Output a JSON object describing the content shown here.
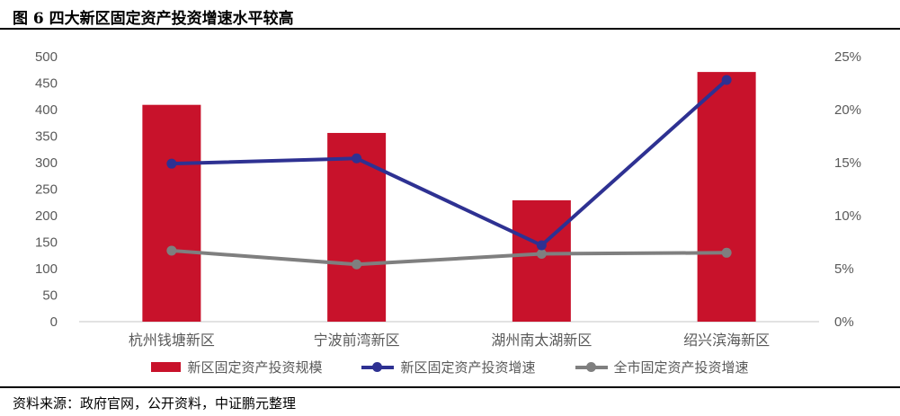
{
  "title": "图 6 四大新区固定资产投资增速水平较高",
  "source": "资料来源：政府官网，公开资料，中证鹏元整理",
  "colors": {
    "bar_red": "#C8122B",
    "line_blue": "#2E3192",
    "line_gray": "#7F7F7F",
    "axis_text": "#595959",
    "axis_line": "#D9D9D9",
    "rule_black": "#000000"
  },
  "chart_data": {
    "type": "bar+line combo",
    "title": "图 6 四大新区固定资产投资增速水平较高",
    "categories": [
      "杭州钱塘新区",
      "宁波前湾新区",
      "湖州南太湖新区",
      "绍兴滨海新区"
    ],
    "series": [
      {
        "name": "新区固定资产投资规模",
        "type": "bar",
        "axis": "left",
        "color": "#C8122B",
        "values": [
          409,
          356,
          229,
          471
        ]
      },
      {
        "name": "新区固定资产投资增速",
        "type": "line",
        "axis": "right",
        "color": "#2E3192",
        "values": [
          14.9,
          15.4,
          7.2,
          22.8
        ],
        "unit": "%"
      },
      {
        "name": "全市固定资产投资增速",
        "type": "line",
        "axis": "right",
        "color": "#7F7F7F",
        "values": [
          6.7,
          5.4,
          6.4,
          6.5
        ],
        "unit": "%"
      }
    ],
    "left_axis": {
      "min": 0,
      "max": 500,
      "step": 50,
      "ticks": [
        0,
        50,
        100,
        150,
        200,
        250,
        300,
        350,
        400,
        450,
        500
      ]
    },
    "right_axis": {
      "min": 0,
      "max": 25,
      "step": 5,
      "ticks": [
        "0%",
        "5%",
        "10%",
        "15%",
        "20%",
        "25%"
      ]
    },
    "grid": false,
    "legend_position": "bottom",
    "xlabel": "",
    "ylabel": ""
  },
  "legend": {
    "items": [
      {
        "label": "新区固定资产投资规模",
        "swatch": "bar"
      },
      {
        "label": "新区固定资产投资增速",
        "swatch": "line"
      },
      {
        "label": "全市固定资产投资增速",
        "swatch": "line"
      }
    ]
  }
}
